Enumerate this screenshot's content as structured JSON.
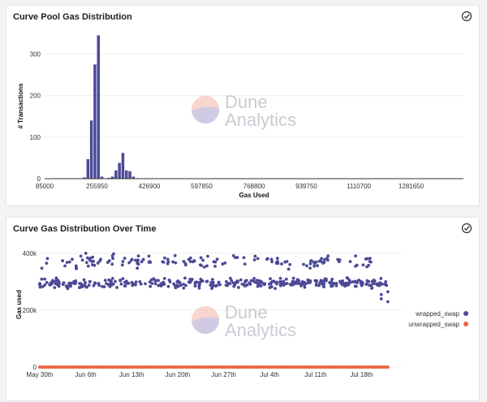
{
  "charts": [
    {
      "title": "Curve Pool Gas Distribution",
      "watermark": {
        "line1": "Dune",
        "line2": "Analytics"
      },
      "icons": {
        "action": "check-circle-icon"
      },
      "colors": {
        "bar": "#4b4a96"
      }
    },
    {
      "title": "Curve Gas Distribution Over Time",
      "watermark": {
        "line1": "Dune",
        "line2": "Analytics"
      },
      "icons": {
        "action": "check-circle-icon"
      },
      "colors": {
        "wrapped_swap": "#4b4a96",
        "unwrapped_swap": "#e8653f"
      }
    }
  ],
  "chart_data": [
    {
      "type": "bar",
      "title": "Curve Pool Gas Distribution",
      "xlabel": "Gas Used",
      "ylabel": "# Transactions",
      "xlim": [
        85000,
        1452600
      ],
      "ylim": [
        0,
        350
      ],
      "xticks": [
        85000,
        255950,
        426900,
        597850,
        768800,
        939750,
        1110700,
        1281650
      ],
      "yticks": [
        0,
        100,
        200,
        300
      ],
      "grid": true,
      "bin_width": 11400,
      "bins": [
        {
          "x": 216000,
          "y": 3
        },
        {
          "x": 227400,
          "y": 47
        },
        {
          "x": 238800,
          "y": 140
        },
        {
          "x": 250200,
          "y": 275
        },
        {
          "x": 261600,
          "y": 345
        },
        {
          "x": 273000,
          "y": 5
        },
        {
          "x": 296000,
          "y": 2
        },
        {
          "x": 307400,
          "y": 5
        },
        {
          "x": 318800,
          "y": 20
        },
        {
          "x": 330200,
          "y": 38
        },
        {
          "x": 341600,
          "y": 62
        },
        {
          "x": 353000,
          "y": 20
        },
        {
          "x": 364400,
          "y": 18
        },
        {
          "x": 375800,
          "y": 5
        }
      ]
    },
    {
      "type": "scatter",
      "title": "Curve Gas Distribution Over Time",
      "xlabel": "",
      "ylabel": "Gas used",
      "xlim": [
        "2021-05-30",
        "2021-07-24"
      ],
      "ylim": [
        0,
        440000
      ],
      "xticks": [
        "May 30th",
        "Jun 6th",
        "Jun 13th",
        "Jun 20th",
        "Jun 27th",
        "Jul 4th",
        "Jul 11th",
        "Jul 18th"
      ],
      "yticks": [
        "0",
        "200k",
        "400k"
      ],
      "grid": true,
      "legend_position": "right",
      "series": [
        {
          "name": "wrapped_swap",
          "bands": [
            {
              "from": "2021-05-30",
              "to": "2021-07-22",
              "y_center": 295000,
              "y_spread": 22000
            },
            {
              "from": "2021-05-30",
              "to": "2021-07-20",
              "y_center": 370000,
              "y_spread": 35000
            }
          ],
          "outliers": [
            {
              "date": "2021-07-21",
              "y": 240000
            },
            {
              "date": "2021-07-21",
              "y": 255000
            },
            {
              "date": "2021-07-22",
              "y": 230000
            },
            {
              "date": "2021-07-22",
              "y": 265000
            }
          ]
        },
        {
          "name": "unwrapped_swap",
          "bands": [
            {
              "from": "2021-05-30",
              "to": "2021-07-22",
              "y_center": 0,
              "y_spread": 0
            }
          ]
        }
      ]
    }
  ]
}
